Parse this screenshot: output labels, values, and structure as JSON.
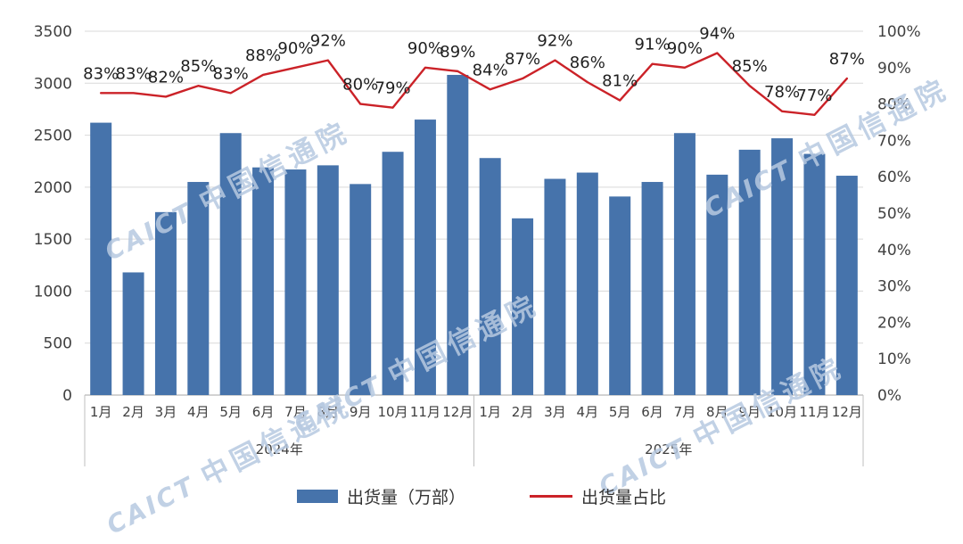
{
  "chart_data": {
    "type": "bar+line combo",
    "categories": [
      "1月",
      "2月",
      "3月",
      "4月",
      "5月",
      "6月",
      "7月",
      "8月",
      "9月",
      "10月",
      "11月",
      "12月",
      "1月",
      "2月",
      "3月",
      "4月",
      "5月",
      "6月",
      "7月",
      "8月",
      "9月",
      "10月",
      "11月",
      "12月"
    ],
    "year_groups": [
      {
        "label": "2024年",
        "start": 0,
        "count": 12
      },
      {
        "label": "2025年",
        "start": 12,
        "count": 12
      }
    ],
    "series": [
      {
        "name": "出货量（万部）",
        "type": "bar",
        "axis": "left",
        "color": "#4673ab",
        "values": [
          2620,
          1180,
          1760,
          2050,
          2520,
          2190,
          2170,
          2210,
          2030,
          2340,
          2650,
          3080,
          2280,
          1700,
          2080,
          2140,
          1910,
          2050,
          2520,
          2120,
          2360,
          2470,
          2320,
          2110
        ]
      },
      {
        "name": "出货量占比",
        "type": "line",
        "axis": "right",
        "color": "#cb2228",
        "values": [
          83,
          83,
          82,
          85,
          83,
          88,
          90,
          92,
          80,
          79,
          90,
          89,
          84,
          87,
          92,
          86,
          81,
          91,
          90,
          94,
          85,
          78,
          77,
          87
        ],
        "labels": [
          "83%",
          "83%",
          "82%",
          "85%",
          "83%",
          "88%",
          "90%",
          "92%",
          "80%",
          "79%",
          "90%",
          "89%",
          "84%",
          "87%",
          "92%",
          "86%",
          "81%",
          "91%",
          "90%",
          "94%",
          "85%",
          "78%",
          "77%",
          "87%"
        ]
      }
    ],
    "left_axis": {
      "min": 0,
      "max": 3500,
      "step": 500,
      "ticks": [
        "0",
        "500",
        "1000",
        "1500",
        "2000",
        "2500",
        "3000",
        "3500"
      ]
    },
    "right_axis": {
      "min": 0,
      "max": 100,
      "step": 10,
      "ticks": [
        "0%",
        "10%",
        "20%",
        "30%",
        "40%",
        "50%",
        "60%",
        "70%",
        "80%",
        "90%",
        "100%"
      ]
    },
    "grid": true,
    "legend_position": "bottom",
    "title": ""
  },
  "legend": {
    "bar_label": "出货量（万部）",
    "line_label": "出货量占比"
  },
  "watermark": {
    "caict": "CAICT",
    "cn": "中国信通院",
    "color": "#b7c9e1"
  },
  "colors": {
    "gridline": "#d9d9d9",
    "axis_line": "#a6a6a6",
    "separator": "#bfbfbf",
    "text": "#404040"
  }
}
